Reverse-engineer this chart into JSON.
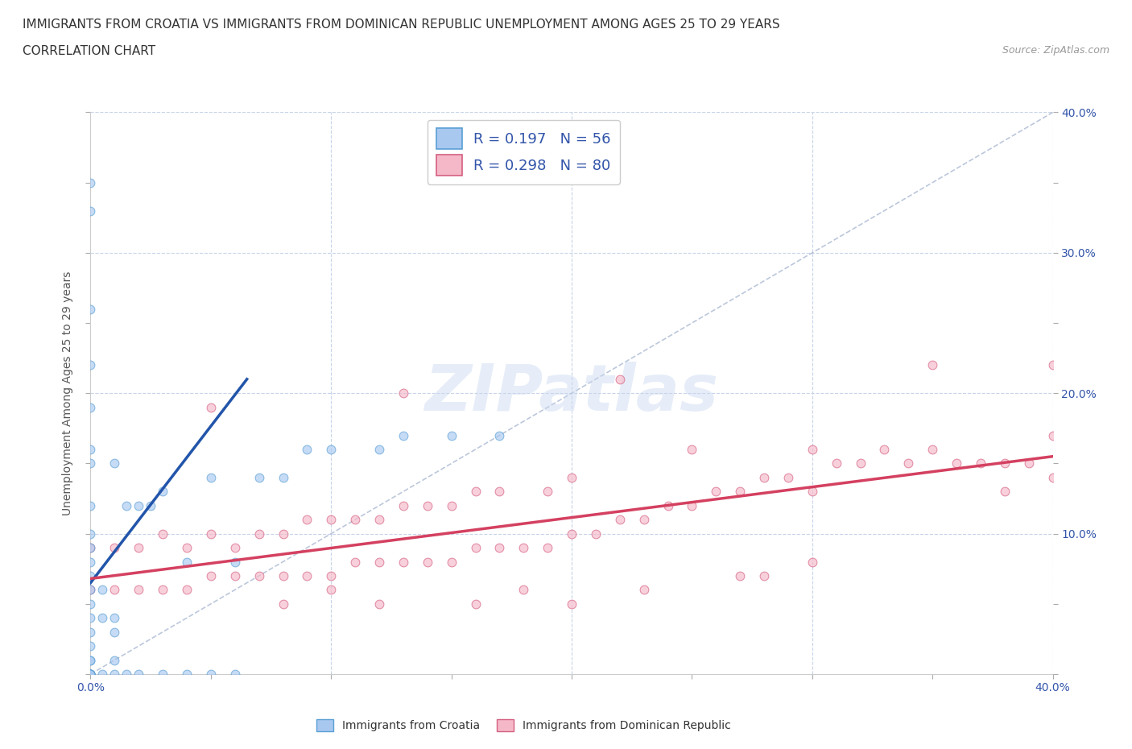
{
  "title_line1": "IMMIGRANTS FROM CROATIA VS IMMIGRANTS FROM DOMINICAN REPUBLIC UNEMPLOYMENT AMONG AGES 25 TO 29 YEARS",
  "title_line2": "CORRELATION CHART",
  "source_text": "Source: ZipAtlas.com",
  "ylabel": "Unemployment Among Ages 25 to 29 years",
  "xlim": [
    0.0,
    0.4
  ],
  "ylim": [
    0.0,
    0.4
  ],
  "croatia_color": "#a8c8f0",
  "croatia_edge_color": "#5a9fd4",
  "dominican_color": "#f5b8c8",
  "dominican_edge_color": "#d46080",
  "croatia_line_color": "#2255aa",
  "dominican_line_color": "#d44060",
  "diagonal_color": "#a0b0cc",
  "croatia_R": 0.197,
  "croatia_N": 56,
  "dominican_R": 0.298,
  "dominican_N": 80,
  "watermark_text": "ZIPatlas",
  "croatia_scatter_x": [
    0.0,
    0.0,
    0.0,
    0.0,
    0.0,
    0.0,
    0.0,
    0.0,
    0.0,
    0.0,
    0.0,
    0.0,
    0.0,
    0.0,
    0.0,
    0.0,
    0.0,
    0.0,
    0.0,
    0.0,
    0.0,
    0.0,
    0.005,
    0.005,
    0.005,
    0.01,
    0.01,
    0.01,
    0.01,
    0.01,
    0.015,
    0.015,
    0.02,
    0.02,
    0.025,
    0.03,
    0.03,
    0.04,
    0.04,
    0.05,
    0.05,
    0.06,
    0.06,
    0.07,
    0.08,
    0.09,
    0.1,
    0.12,
    0.13,
    0.15,
    0.17,
    0.0,
    0.0,
    0.0,
    0.0,
    0.0
  ],
  "croatia_scatter_y": [
    0.0,
    0.0,
    0.0,
    0.0,
    0.0,
    0.0,
    0.0,
    0.0,
    0.01,
    0.01,
    0.02,
    0.03,
    0.04,
    0.05,
    0.06,
    0.07,
    0.08,
    0.09,
    0.1,
    0.12,
    0.15,
    0.16,
    0.0,
    0.04,
    0.06,
    0.0,
    0.01,
    0.03,
    0.04,
    0.15,
    0.0,
    0.12,
    0.0,
    0.12,
    0.12,
    0.0,
    0.13,
    0.0,
    0.08,
    0.0,
    0.14,
    0.0,
    0.08,
    0.14,
    0.14,
    0.16,
    0.16,
    0.16,
    0.17,
    0.17,
    0.17,
    0.33,
    0.35,
    0.22,
    0.26,
    0.19
  ],
  "dominican_scatter_x": [
    0.0,
    0.0,
    0.01,
    0.01,
    0.02,
    0.02,
    0.03,
    0.03,
    0.04,
    0.04,
    0.05,
    0.05,
    0.06,
    0.06,
    0.07,
    0.07,
    0.08,
    0.08,
    0.09,
    0.09,
    0.1,
    0.1,
    0.11,
    0.11,
    0.12,
    0.12,
    0.13,
    0.13,
    0.14,
    0.14,
    0.15,
    0.15,
    0.16,
    0.16,
    0.17,
    0.17,
    0.18,
    0.19,
    0.19,
    0.2,
    0.2,
    0.21,
    0.22,
    0.23,
    0.24,
    0.25,
    0.25,
    0.26,
    0.27,
    0.28,
    0.29,
    0.3,
    0.3,
    0.31,
    0.32,
    0.33,
    0.34,
    0.35,
    0.36,
    0.37,
    0.38,
    0.39,
    0.4,
    0.4,
    0.05,
    0.1,
    0.13,
    0.18,
    0.22,
    0.28,
    0.3,
    0.35,
    0.38,
    0.4,
    0.08,
    0.12,
    0.16,
    0.2,
    0.23,
    0.27
  ],
  "dominican_scatter_y": [
    0.06,
    0.09,
    0.06,
    0.09,
    0.06,
    0.09,
    0.06,
    0.1,
    0.06,
    0.09,
    0.07,
    0.1,
    0.07,
    0.09,
    0.07,
    0.1,
    0.07,
    0.1,
    0.07,
    0.11,
    0.07,
    0.11,
    0.08,
    0.11,
    0.08,
    0.11,
    0.08,
    0.12,
    0.08,
    0.12,
    0.08,
    0.12,
    0.09,
    0.13,
    0.09,
    0.13,
    0.09,
    0.09,
    0.13,
    0.1,
    0.14,
    0.1,
    0.11,
    0.11,
    0.12,
    0.12,
    0.16,
    0.13,
    0.13,
    0.14,
    0.14,
    0.13,
    0.16,
    0.15,
    0.15,
    0.16,
    0.15,
    0.16,
    0.15,
    0.15,
    0.15,
    0.15,
    0.14,
    0.17,
    0.19,
    0.06,
    0.2,
    0.06,
    0.21,
    0.07,
    0.08,
    0.22,
    0.13,
    0.22,
    0.05,
    0.05,
    0.05,
    0.05,
    0.06,
    0.07
  ],
  "croatia_trend_x": [
    0.0,
    0.065
  ],
  "croatia_trend_y": [
    0.065,
    0.21
  ],
  "dominican_trend_x": [
    0.0,
    0.4
  ],
  "dominican_trend_y": [
    0.068,
    0.155
  ],
  "background_color": "#ffffff",
  "grid_color": "#c8d4e8",
  "title_fontsize": 11,
  "axis_label_fontsize": 10,
  "tick_fontsize": 10,
  "legend_fontsize": 13,
  "marker_size": 60,
  "marker_alpha": 0.65,
  "legend_text_color": "#3355aa"
}
